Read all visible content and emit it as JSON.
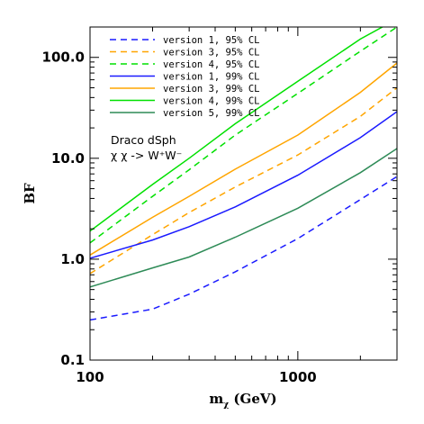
{
  "chart_data": {
    "type": "line",
    "title": "",
    "xlabel": "m",
    "xlabel_sub": "χ",
    "xlabel_unit": " (GeV)",
    "ylabel": "BF",
    "xscale": "log",
    "yscale": "log",
    "xlim": [
      100,
      3000
    ],
    "ylim": [
      0.1,
      200
    ],
    "grid": false,
    "legend_position": "top-left",
    "x_ticks": [
      {
        "value": 100,
        "label": "100"
      },
      {
        "value": 1000,
        "label": "1000"
      }
    ],
    "y_ticks": [
      {
        "value": 0.1,
        "label": "0.1"
      },
      {
        "value": 1,
        "label": "1.0"
      },
      {
        "value": 10,
        "label": "10.0"
      },
      {
        "value": 100,
        "label": "100.0"
      }
    ],
    "annotation_lines": [
      "Draco dSph",
      "χ χ -> W⁺W⁻"
    ],
    "series": [
      {
        "name": "version 1, 95% CL",
        "color": "#1a1aff",
        "dash": true,
        "points": [
          [
            100,
            0.25
          ],
          [
            200,
            0.32
          ],
          [
            300,
            0.45
          ],
          [
            500,
            0.75
          ],
          [
            1000,
            1.6
          ],
          [
            2000,
            3.9
          ],
          [
            3000,
            6.6
          ]
        ]
      },
      {
        "name": "version 3, 95% CL",
        "color": "#ffa500",
        "dash": true,
        "points": [
          [
            100,
            0.72
          ],
          [
            200,
            1.75
          ],
          [
            300,
            2.9
          ],
          [
            500,
            5.2
          ],
          [
            1000,
            10.8
          ],
          [
            2000,
            26
          ],
          [
            3000,
            50
          ]
        ]
      },
      {
        "name": "version 4, 95% CL",
        "color": "#00e000",
        "dash": true,
        "points": [
          [
            100,
            1.45
          ],
          [
            200,
            4.2
          ],
          [
            300,
            7.7
          ],
          [
            500,
            17
          ],
          [
            1000,
            44
          ],
          [
            2000,
            115
          ],
          [
            3000,
            200
          ]
        ]
      },
      {
        "name": "version 1, 99% CL",
        "color": "#1a1aff",
        "dash": false,
        "points": [
          [
            100,
            1.02
          ],
          [
            200,
            1.55
          ],
          [
            300,
            2.1
          ],
          [
            500,
            3.3
          ],
          [
            1000,
            6.8
          ],
          [
            2000,
            16
          ],
          [
            3000,
            29
          ]
        ]
      },
      {
        "name": "version 3, 99% CL",
        "color": "#ffa500",
        "dash": false,
        "points": [
          [
            100,
            1.1
          ],
          [
            200,
            2.6
          ],
          [
            300,
            4.2
          ],
          [
            500,
            7.8
          ],
          [
            1000,
            17
          ],
          [
            2000,
            45
          ],
          [
            3000,
            88
          ]
        ]
      },
      {
        "name": "version 4, 99% CL",
        "color": "#00e000",
        "dash": false,
        "points": [
          [
            100,
            1.9
          ],
          [
            200,
            5.5
          ],
          [
            300,
            10
          ],
          [
            500,
            22
          ],
          [
            1000,
            58
          ],
          [
            2000,
            152
          ],
          [
            3000,
            240
          ]
        ]
      },
      {
        "name": "version 5, 99% CL",
        "color": "#2e8b57",
        "dash": false,
        "points": [
          [
            100,
            0.53
          ],
          [
            200,
            0.82
          ],
          [
            300,
            1.05
          ],
          [
            500,
            1.65
          ],
          [
            1000,
            3.2
          ],
          [
            2000,
            7.2
          ],
          [
            3000,
            12.5
          ]
        ]
      }
    ]
  }
}
